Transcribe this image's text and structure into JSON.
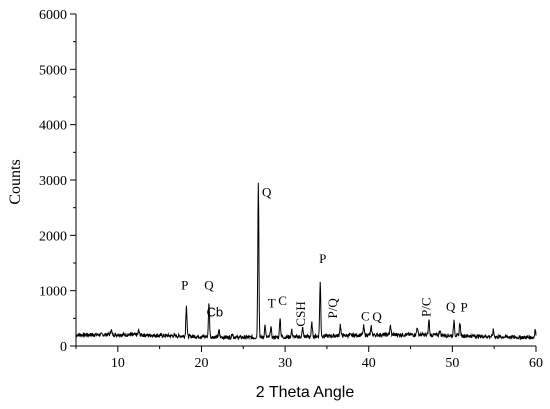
{
  "chart_data": {
    "type": "line",
    "title": "",
    "xlabel": "2 Theta Angle",
    "ylabel": "Counts",
    "xlim": [
      5,
      60
    ],
    "ylim": [
      0,
      6000
    ],
    "x_ticks": [
      10,
      20,
      30,
      40,
      50,
      60
    ],
    "y_ticks": [
      0,
      1000,
      2000,
      3000,
      4000,
      5000,
      6000
    ],
    "grid": false,
    "legend": "none",
    "line_color": "#000000",
    "baseline": 180,
    "peaks": [
      {
        "x": 9.2,
        "y": 280
      },
      {
        "x": 12.5,
        "y": 260
      },
      {
        "x": 18.2,
        "y": 760
      },
      {
        "x": 20.9,
        "y": 800
      },
      {
        "x": 22.1,
        "y": 300
      },
      {
        "x": 23.7,
        "y": 260
      },
      {
        "x": 26.8,
        "y": 3000
      },
      {
        "x": 27.6,
        "y": 400
      },
      {
        "x": 28.3,
        "y": 380
      },
      {
        "x": 29.4,
        "y": 540
      },
      {
        "x": 30.8,
        "y": 300
      },
      {
        "x": 32.1,
        "y": 340
      },
      {
        "x": 33.2,
        "y": 420
      },
      {
        "x": 34.2,
        "y": 1150
      },
      {
        "x": 36.6,
        "y": 380
      },
      {
        "x": 39.4,
        "y": 340
      },
      {
        "x": 40.3,
        "y": 320
      },
      {
        "x": 42.6,
        "y": 340
      },
      {
        "x": 45.8,
        "y": 320
      },
      {
        "x": 47.2,
        "y": 450
      },
      {
        "x": 48.5,
        "y": 280
      },
      {
        "x": 50.2,
        "y": 460
      },
      {
        "x": 50.9,
        "y": 430
      },
      {
        "x": 54.9,
        "y": 300
      },
      {
        "x": 59.9,
        "y": 330
      }
    ],
    "annotations": [
      {
        "text": "P",
        "x": 18.0,
        "y": 1020,
        "font": "serif"
      },
      {
        "text": "Q",
        "x": 20.9,
        "y": 1020,
        "font": "serif"
      },
      {
        "text": "Cb",
        "x": 21.6,
        "y": 530,
        "font": "sans"
      },
      {
        "text": "Q",
        "x": 27.8,
        "y": 2700,
        "font": "serif"
      },
      {
        "text": "T",
        "x": 28.4,
        "y": 700,
        "font": "serif"
      },
      {
        "text": "C",
        "x": 29.7,
        "y": 740,
        "font": "serif"
      },
      {
        "text": "CSH",
        "x": 32.4,
        "y": 580,
        "font": "serif",
        "rotate": -90
      },
      {
        "text": "P",
        "x": 34.5,
        "y": 1500,
        "font": "serif"
      },
      {
        "text": "P/Q",
        "x": 36.2,
        "y": 680,
        "font": "serif",
        "rotate": -90
      },
      {
        "text": "C",
        "x": 39.6,
        "y": 460,
        "font": "serif"
      },
      {
        "text": "Q",
        "x": 41.0,
        "y": 450,
        "font": "serif"
      },
      {
        "text": "P/C",
        "x": 47.4,
        "y": 700,
        "font": "serif",
        "rotate": -90
      },
      {
        "text": "Q",
        "x": 49.8,
        "y": 630,
        "font": "serif"
      },
      {
        "text": "P",
        "x": 51.4,
        "y": 620,
        "font": "serif"
      }
    ]
  }
}
